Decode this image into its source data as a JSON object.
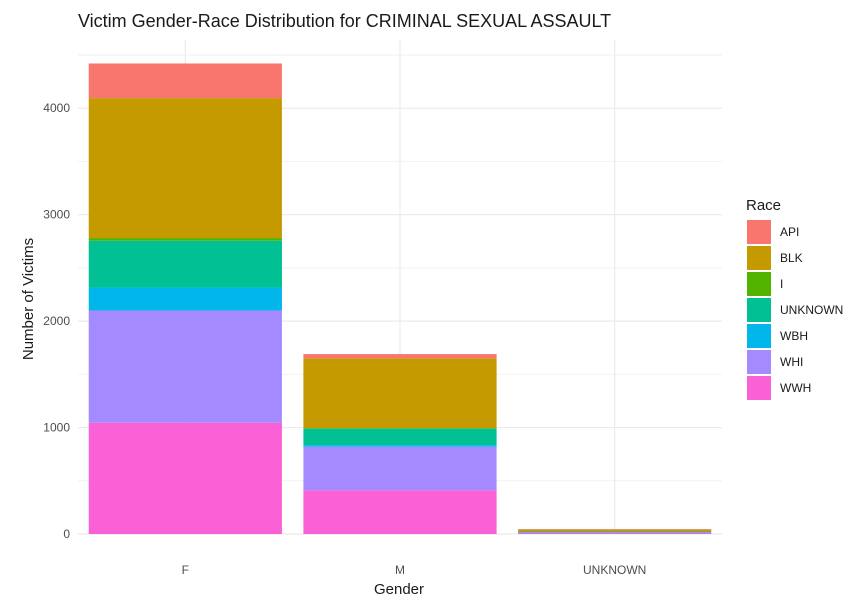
{
  "chart_data": {
    "type": "bar",
    "stacked": true,
    "title": "Victim Gender-Race Distribution for CRIMINAL SEXUAL ASSAULT",
    "xlabel": "Gender",
    "ylabel": "Number of Victims",
    "categories": [
      "F",
      "M",
      "UNKNOWN"
    ],
    "ylim": [
      0,
      4600
    ],
    "yticks": [
      0,
      1000,
      2000,
      3000,
      4000
    ],
    "grid": true,
    "legend": {
      "title": "Race",
      "position": "right"
    },
    "series": [
      {
        "name": "API",
        "color": "#F8766D",
        "values": [
          325,
          40,
          2
        ]
      },
      {
        "name": "BLK",
        "color": "#C49A00",
        "values": [
          1315,
          655,
          20
        ]
      },
      {
        "name": "I",
        "color": "#53B400",
        "values": [
          25,
          5,
          0
        ]
      },
      {
        "name": "UNKNOWN",
        "color": "#00C094",
        "values": [
          440,
          155,
          3
        ]
      },
      {
        "name": "WBH",
        "color": "#00B6EB",
        "values": [
          215,
          15,
          1
        ]
      },
      {
        "name": "WHI",
        "color": "#A58AFF",
        "values": [
          1055,
          410,
          7
        ]
      },
      {
        "name": "WWH",
        "color": "#FB61D7",
        "values": [
          1045,
          410,
          12
        ]
      }
    ]
  }
}
